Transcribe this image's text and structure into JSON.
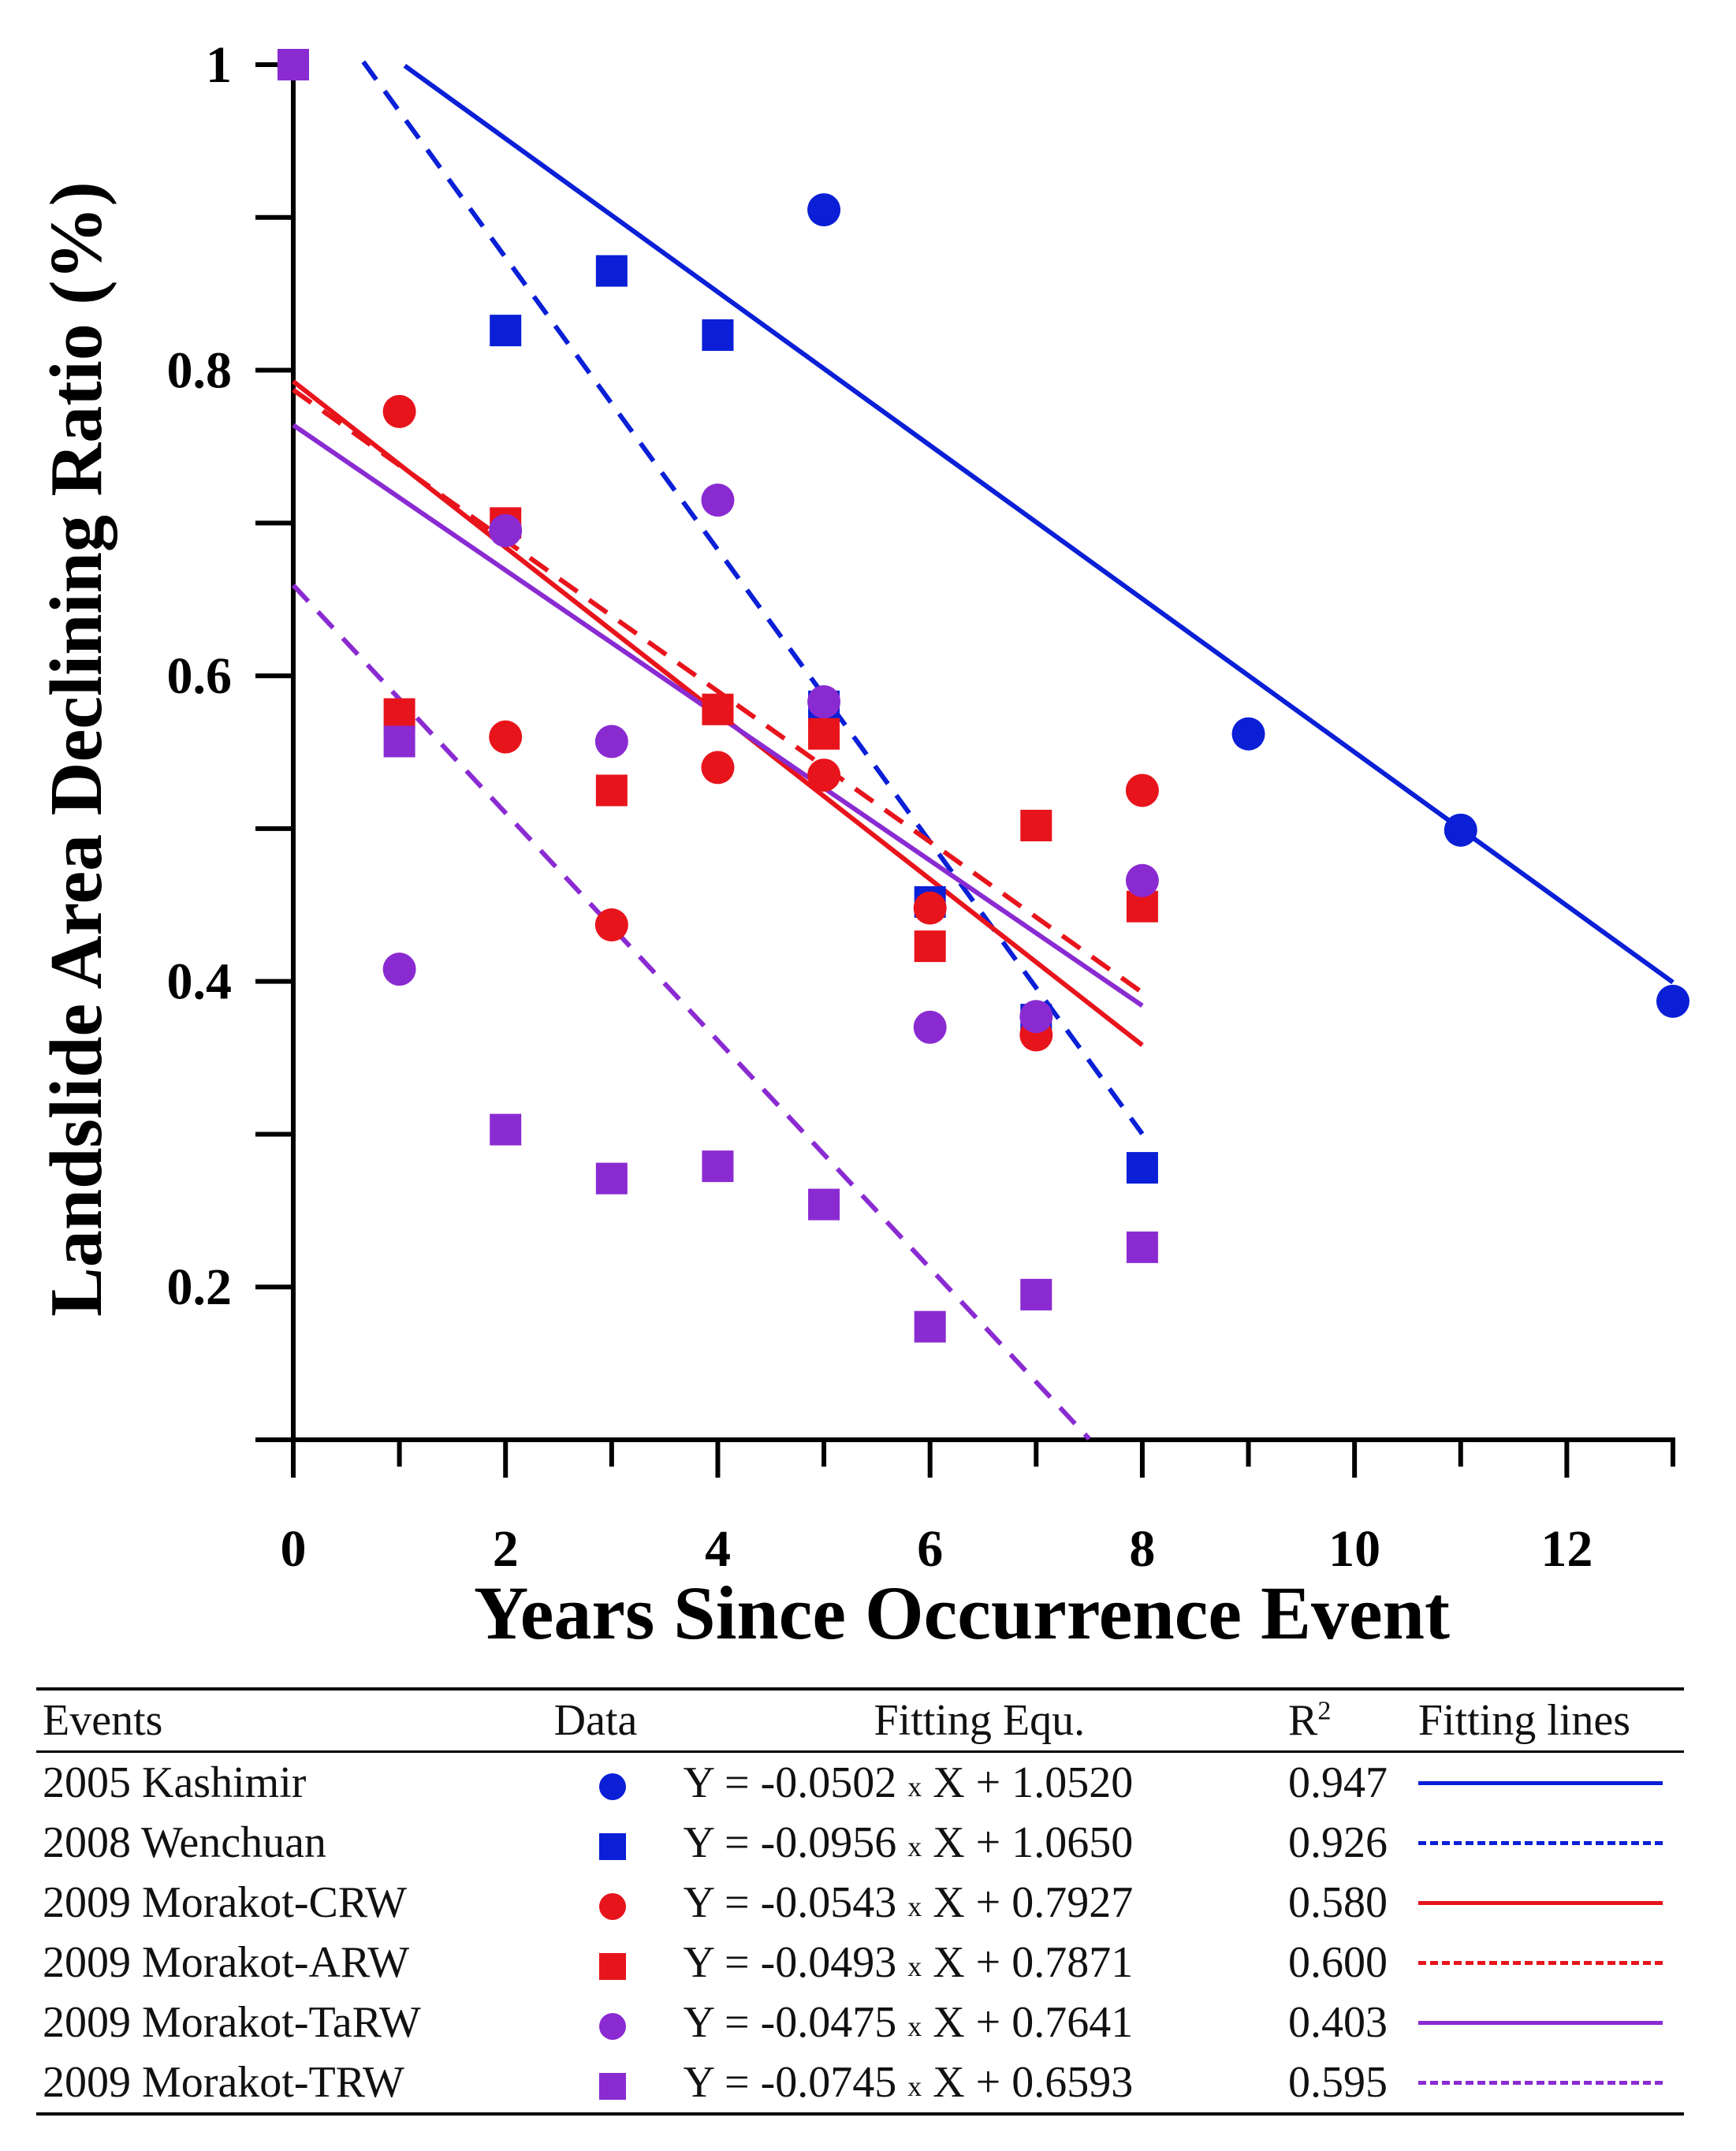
{
  "chart_data": {
    "type": "scatter",
    "title": "",
    "xlabel": "Years Since Occurrence Event",
    "ylabel": "Landslide Area Declining Ratio (%)",
    "xlim": [
      0,
      13
    ],
    "ylim": [
      0.1,
      1.0
    ],
    "xticks": [
      0,
      2,
      4,
      6,
      8,
      10,
      12
    ],
    "yticks": [
      0.2,
      0.4,
      0.6,
      0.8,
      1
    ],
    "ytick_labels": [
      "0.2",
      "0.4",
      "0.6",
      "0.8",
      "1"
    ],
    "series": [
      {
        "name": "2005 Kashimir",
        "marker": "circle",
        "color": "#0a1fd6",
        "line": "solid",
        "points": [
          [
            5,
            0.905
          ],
          [
            9,
            0.562
          ],
          [
            11,
            0.499
          ],
          [
            13,
            0.387
          ]
        ],
        "fit": {
          "slope": -0.0502,
          "intercept": 1.052,
          "x_range": [
            1.05,
            13
          ]
        }
      },
      {
        "name": "2008 Wenchuan",
        "marker": "square",
        "color": "#0a1fd6",
        "line": "dashed",
        "points": [
          [
            0,
            1.0
          ],
          [
            2,
            0.826
          ],
          [
            3,
            0.865
          ],
          [
            4,
            0.823
          ],
          [
            5,
            0.58
          ],
          [
            6,
            0.452
          ],
          [
            7,
            0.375
          ],
          [
            8,
            0.278
          ]
        ],
        "fit": {
          "slope": -0.0956,
          "intercept": 1.065,
          "x_range": [
            0.66,
            8
          ]
        }
      },
      {
        "name": "2009 Morakot-CRW",
        "marker": "circle",
        "color": "#e8141c",
        "line": "solid",
        "points": [
          [
            1,
            0.773
          ],
          [
            2,
            0.56
          ],
          [
            3,
            0.437
          ],
          [
            4,
            0.54
          ],
          [
            5,
            0.535
          ],
          [
            6,
            0.448
          ],
          [
            7,
            0.365
          ],
          [
            8,
            0.525
          ]
        ],
        "fit": {
          "slope": -0.0543,
          "intercept": 0.7927,
          "x_range": [
            0,
            8
          ]
        }
      },
      {
        "name": "2009 Morakot-ARW",
        "marker": "square",
        "color": "#e8141c",
        "line": "dashed",
        "points": [
          [
            1,
            0.575
          ],
          [
            2,
            0.7
          ],
          [
            3,
            0.525
          ],
          [
            4,
            0.578
          ],
          [
            5,
            0.562
          ],
          [
            6,
            0.423
          ],
          [
            7,
            0.502
          ],
          [
            8,
            0.449
          ]
        ],
        "fit": {
          "slope": -0.0493,
          "intercept": 0.7871,
          "x_range": [
            0,
            8
          ]
        }
      },
      {
        "name": "2009 Morakot-TaRW",
        "marker": "circle",
        "color": "#8a2bd2",
        "line": "solid",
        "points": [
          [
            1,
            0.408
          ],
          [
            2,
            0.695
          ],
          [
            3,
            0.557
          ],
          [
            4,
            0.715
          ],
          [
            5,
            0.583
          ],
          [
            6,
            0.37
          ],
          [
            7,
            0.377
          ],
          [
            8,
            0.466
          ]
        ],
        "fit": {
          "slope": -0.0475,
          "intercept": 0.7641,
          "x_range": [
            0,
            8
          ]
        }
      },
      {
        "name": "2009 Morakot-TRW",
        "marker": "square",
        "color": "#8a2bd2",
        "line": "dashed",
        "points": [
          [
            0,
            1.0
          ],
          [
            1,
            0.557
          ],
          [
            2,
            0.303
          ],
          [
            3,
            0.271
          ],
          [
            4,
            0.279
          ],
          [
            5,
            0.254
          ],
          [
            6,
            0.174
          ],
          [
            7,
            0.195
          ],
          [
            8,
            0.226
          ]
        ],
        "fit": {
          "slope": -0.0745,
          "intercept": 0.6593,
          "x_range": [
            0,
            7.5
          ]
        }
      }
    ]
  },
  "legend": {
    "headers": {
      "events": "Events",
      "data": "Data",
      "equation": "Fitting Equ.",
      "r2_base": "R",
      "r2_sup": "2",
      "lines": "Fitting lines"
    },
    "rows": [
      {
        "event": "2005 Kashimir",
        "eq_left": "Y = -0.0502",
        "times": "x",
        "eq_right": "X + 1.0520",
        "r2": "0.947"
      },
      {
        "event": "2008 Wenchuan",
        "eq_left": "Y = -0.0956",
        "times": "x",
        "eq_right": "X + 1.0650",
        "r2": "0.926"
      },
      {
        "event": "2009 Morakot-CRW",
        "eq_left": "Y = -0.0543",
        "times": "x",
        "eq_right": "X + 0.7927",
        "r2": "0.580"
      },
      {
        "event": "2009 Morakot-ARW",
        "eq_left": "Y = -0.0493",
        "times": "x",
        "eq_right": "X + 0.7871",
        "r2": "0.600"
      },
      {
        "event": "2009 Morakot-TaRW",
        "eq_left": "Y = -0.0475",
        "times": "x",
        "eq_right": "X + 0.7641",
        "r2": "0.403"
      },
      {
        "event": "2009 Morakot-TRW",
        "eq_left": "Y = -0.0745",
        "times": "x",
        "eq_right": "X + 0.6593",
        "r2": "0.595"
      }
    ]
  }
}
